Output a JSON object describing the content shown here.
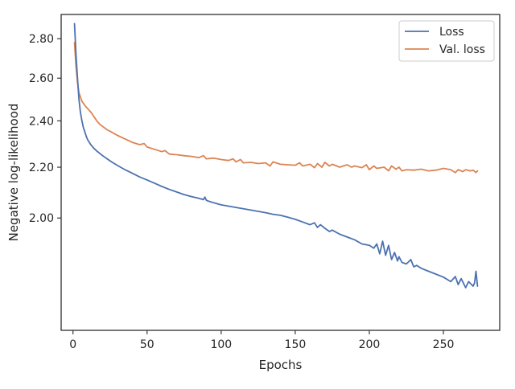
{
  "chart_data": {
    "type": "line",
    "xlabel": "Epochs",
    "ylabel": "Negative log-likelihood",
    "xlim": [
      -8,
      288
    ],
    "ylim": [
      1.62,
      2.93
    ],
    "y_scale": "log",
    "grid": false,
    "legend_position": "top-right",
    "x_ticks": [
      0,
      50,
      100,
      150,
      200,
      250
    ],
    "x_tick_labels": [
      "0",
      "50",
      "100",
      "150",
      "200",
      "250"
    ],
    "y_ticks": [
      2.0,
      2.2,
      2.4,
      2.6,
      2.8
    ],
    "y_tick_labels": [
      "2.00",
      "2.20",
      "2.40",
      "2.60",
      "2.80"
    ],
    "series": [
      {
        "name": "Loss",
        "color": "#4c72b0",
        "x": [
          1,
          2,
          3,
          4,
          5,
          6,
          7,
          8,
          9,
          10,
          12,
          14,
          16,
          18,
          20,
          23,
          26,
          30,
          35,
          40,
          45,
          50,
          55,
          60,
          65,
          70,
          75,
          80,
          85,
          88,
          89,
          90,
          91,
          95,
          100,
          105,
          110,
          115,
          120,
          125,
          130,
          135,
          140,
          145,
          150,
          155,
          160,
          163,
          165,
          167,
          170,
          173,
          175,
          180,
          185,
          190,
          195,
          200,
          203,
          205,
          207,
          209,
          211,
          213,
          215,
          217,
          219,
          220,
          222,
          225,
          228,
          230,
          232,
          235,
          240,
          245,
          250,
          255,
          258,
          260,
          262,
          265,
          267,
          270,
          271,
          272,
          273
        ],
        "values": [
          2.88,
          2.72,
          2.6,
          2.5,
          2.44,
          2.4,
          2.37,
          2.35,
          2.33,
          2.315,
          2.295,
          2.28,
          2.268,
          2.258,
          2.248,
          2.235,
          2.222,
          2.207,
          2.19,
          2.175,
          2.16,
          2.148,
          2.135,
          2.122,
          2.11,
          2.1,
          2.09,
          2.082,
          2.075,
          2.07,
          2.08,
          2.068,
          2.065,
          2.058,
          2.05,
          2.045,
          2.04,
          2.035,
          2.03,
          2.025,
          2.02,
          2.014,
          2.01,
          2.003,
          1.995,
          1.985,
          1.975,
          1.982,
          1.965,
          1.975,
          1.962,
          1.95,
          1.955,
          1.94,
          1.93,
          1.92,
          1.905,
          1.9,
          1.89,
          1.905,
          1.87,
          1.915,
          1.865,
          1.9,
          1.85,
          1.875,
          1.845,
          1.86,
          1.84,
          1.835,
          1.85,
          1.825,
          1.83,
          1.82,
          1.81,
          1.8,
          1.79,
          1.775,
          1.792,
          1.765,
          1.785,
          1.755,
          1.775,
          1.76,
          1.77,
          1.81,
          1.76
        ]
      },
      {
        "name": "Val. loss",
        "color": "#dd8452",
        "x": [
          1,
          2,
          3,
          4,
          5,
          6,
          8,
          10,
          12,
          14,
          16,
          18,
          20,
          23,
          26,
          30,
          35,
          40,
          45,
          48,
          50,
          55,
          60,
          62,
          65,
          70,
          75,
          80,
          85,
          88,
          90,
          95,
          100,
          105,
          108,
          110,
          113,
          115,
          120,
          125,
          130,
          133,
          135,
          140,
          145,
          150,
          153,
          155,
          160,
          163,
          165,
          168,
          170,
          173,
          175,
          180,
          185,
          188,
          190,
          195,
          198,
          200,
          203,
          205,
          210,
          213,
          215,
          218,
          220,
          222,
          225,
          230,
          235,
          240,
          245,
          250,
          255,
          258,
          260,
          263,
          265,
          268,
          270,
          272,
          273
        ],
        "values": [
          2.78,
          2.66,
          2.58,
          2.53,
          2.51,
          2.49,
          2.47,
          2.455,
          2.44,
          2.42,
          2.4,
          2.385,
          2.375,
          2.36,
          2.35,
          2.335,
          2.32,
          2.305,
          2.295,
          2.3,
          2.285,
          2.275,
          2.265,
          2.27,
          2.255,
          2.252,
          2.248,
          2.245,
          2.24,
          2.248,
          2.235,
          2.238,
          2.232,
          2.228,
          2.235,
          2.222,
          2.232,
          2.218,
          2.22,
          2.215,
          2.218,
          2.205,
          2.222,
          2.212,
          2.21,
          2.208,
          2.218,
          2.205,
          2.212,
          2.198,
          2.215,
          2.2,
          2.22,
          2.205,
          2.212,
          2.2,
          2.21,
          2.2,
          2.205,
          2.198,
          2.21,
          2.19,
          2.205,
          2.195,
          2.2,
          2.185,
          2.205,
          2.192,
          2.2,
          2.185,
          2.19,
          2.188,
          2.192,
          2.185,
          2.188,
          2.195,
          2.19,
          2.178,
          2.19,
          2.182,
          2.19,
          2.185,
          2.188,
          2.178,
          2.185
        ]
      }
    ]
  }
}
